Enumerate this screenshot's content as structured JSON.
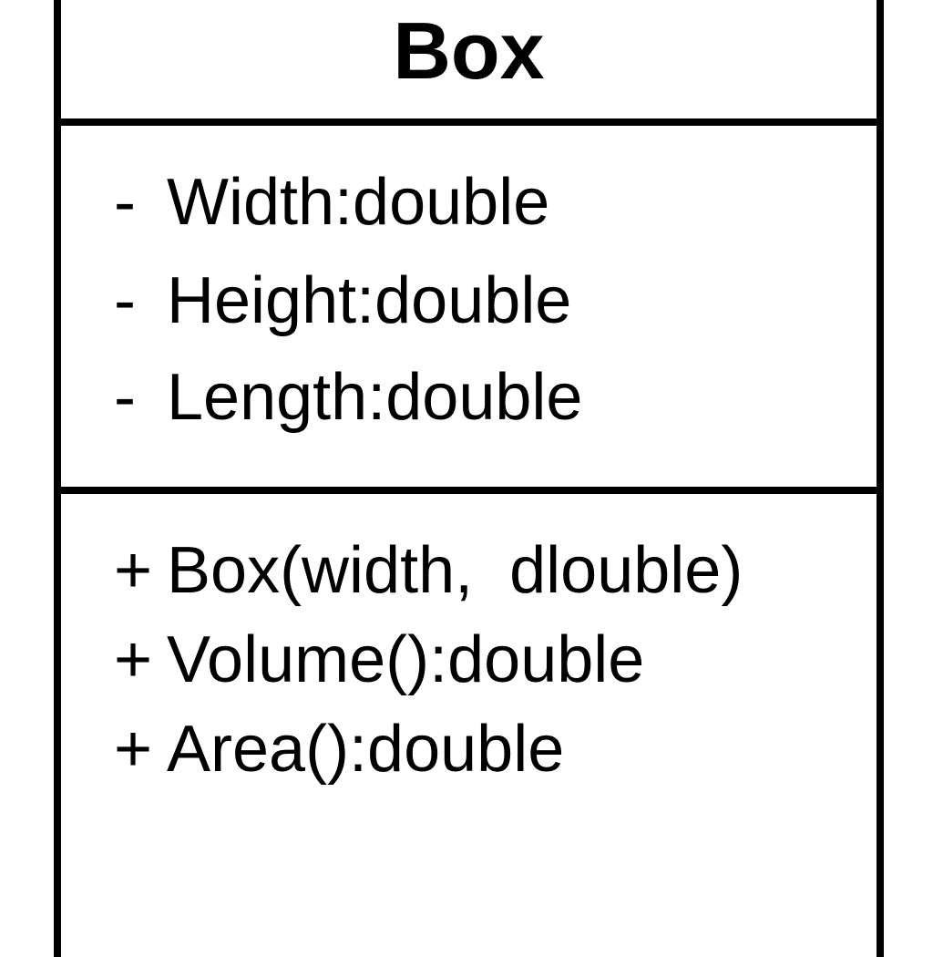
{
  "class": {
    "name": "Box",
    "attributes": [
      {
        "visibility": "-",
        "name": "Width:",
        "type": "double"
      },
      {
        "visibility": "-",
        "name": "Height:",
        "type": "double"
      },
      {
        "visibility": "-",
        "name": "Length:",
        "type": "double"
      }
    ],
    "operations": [
      {
        "visibility": "+",
        "signature": "Box(width,  dlouble)"
      },
      {
        "visibility": "+",
        "signature": "Volume():double"
      },
      {
        "visibility": "+",
        "signature": "Area():double"
      }
    ]
  },
  "colors": {
    "line": "#000000",
    "text": "#000000",
    "background": "#ffffff"
  }
}
